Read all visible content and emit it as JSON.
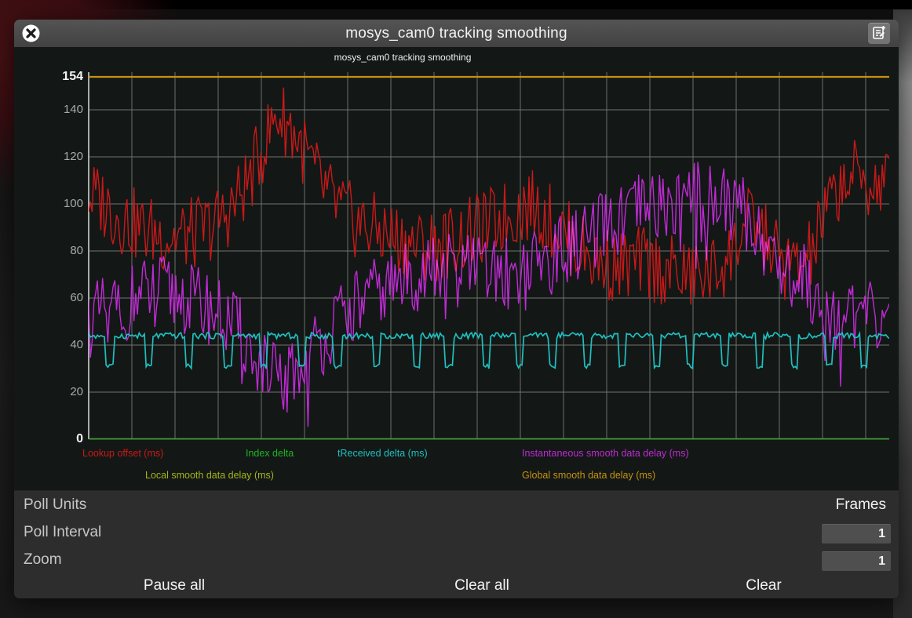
{
  "window": {
    "title": "mosys_cam0 tracking smoothing"
  },
  "chart_data": {
    "type": "line",
    "title": "mosys_cam0 tracking smoothing",
    "xlabel": "",
    "ylabel": "",
    "ylim": [
      0,
      154
    ],
    "grid": true,
    "legend_position": "bottom",
    "yticks": [
      {
        "label": "154",
        "value": 154,
        "emph": true
      },
      {
        "label": "140",
        "value": 140,
        "emph": false
      },
      {
        "label": "120",
        "value": 120,
        "emph": false
      },
      {
        "label": "100",
        "value": 100,
        "emph": false
      },
      {
        "label": "80",
        "value": 80,
        "emph": false
      },
      {
        "label": "60",
        "value": 60,
        "emph": false
      },
      {
        "label": "40",
        "value": 40,
        "emph": false
      },
      {
        "label": "20",
        "value": 20,
        "emph": false
      },
      {
        "label": "0",
        "value": 0,
        "emph": true
      }
    ],
    "draw_order": [
      4,
      5,
      3,
      0,
      2,
      1
    ],
    "series": [
      {
        "name": "Lookup offset (ms)",
        "color": "#c81919",
        "type": "noisy",
        "amplitude": 16,
        "seed": 3,
        "blend": "screen",
        "anchors": [
          [
            0,
            104
          ],
          [
            2,
            100
          ],
          [
            4,
            94
          ],
          [
            7,
            89
          ],
          [
            10,
            86
          ],
          [
            13,
            87
          ],
          [
            16,
            92
          ],
          [
            18,
            99
          ],
          [
            20,
            110
          ],
          [
            22,
            126
          ],
          [
            23.5,
            138
          ],
          [
            25,
            134
          ],
          [
            27,
            122
          ],
          [
            29,
            108
          ],
          [
            31,
            99
          ],
          [
            33,
            93
          ],
          [
            35,
            90
          ],
          [
            38,
            86
          ],
          [
            41,
            82
          ],
          [
            44,
            83
          ],
          [
            47,
            86
          ],
          [
            50,
            91
          ],
          [
            53,
            96
          ],
          [
            55,
            100
          ],
          [
            57,
            95
          ],
          [
            59,
            89
          ],
          [
            61,
            82
          ],
          [
            63,
            77
          ],
          [
            66,
            73
          ],
          [
            69,
            75
          ],
          [
            72,
            72
          ],
          [
            75,
            69
          ],
          [
            78,
            71
          ],
          [
            80,
            77
          ],
          [
            81.5,
            88
          ],
          [
            83,
            93
          ],
          [
            85,
            83
          ],
          [
            87,
            74
          ],
          [
            89,
            73
          ],
          [
            90.5,
            80
          ],
          [
            92,
            96
          ],
          [
            94,
            109
          ],
          [
            96,
            112
          ],
          [
            98,
            107
          ],
          [
            100,
            111
          ]
        ]
      },
      {
        "name": "Index delta",
        "color": "#1db325",
        "type": "flat",
        "value": 0
      },
      {
        "name": "tReceived delta (ms)",
        "color": "#1fbfbf",
        "type": "dips",
        "base": 44,
        "amplitude": 1.3,
        "seed": 9,
        "dip_value": 31,
        "dip_width": 0.45,
        "dips": [
          2.6,
          7.5,
          12.5,
          17.4,
          21.8,
          26.7,
          31.1,
          36,
          40.9,
          45,
          49.7,
          53.8,
          58,
          62.3,
          66.6,
          70.9,
          75.2,
          79.5,
          83.8,
          88.1,
          92.5,
          96.8
        ]
      },
      {
        "name": "Instantaneous smooth data delay (ms)",
        "color": "#bf2ad4",
        "type": "noisy",
        "amplitude": 16,
        "seed": 11,
        "downspike": 16,
        "anchors": [
          [
            0,
            50
          ],
          [
            3,
            55
          ],
          [
            6,
            60
          ],
          [
            9,
            63
          ],
          [
            12,
            60
          ],
          [
            15,
            56
          ],
          [
            18,
            48
          ],
          [
            20,
            40
          ],
          [
            22,
            30
          ],
          [
            23.5,
            24
          ],
          [
            25,
            26
          ],
          [
            27,
            33
          ],
          [
            29,
            42
          ],
          [
            31,
            50
          ],
          [
            33,
            56
          ],
          [
            35,
            60
          ],
          [
            37,
            64
          ],
          [
            39,
            67
          ],
          [
            42,
            71
          ],
          [
            45,
            73
          ],
          [
            48,
            72
          ],
          [
            51,
            70
          ],
          [
            54,
            72
          ],
          [
            57,
            76
          ],
          [
            60,
            81
          ],
          [
            63,
            87
          ],
          [
            66,
            92
          ],
          [
            69,
            97
          ],
          [
            71,
            99
          ],
          [
            73,
            100
          ],
          [
            75,
            102
          ],
          [
            77,
            104
          ],
          [
            79,
            102
          ],
          [
            81,
            99
          ],
          [
            83,
            92
          ],
          [
            85,
            80
          ],
          [
            87,
            72
          ],
          [
            89,
            70
          ],
          [
            91,
            62
          ],
          [
            93,
            54
          ],
          [
            95,
            49
          ],
          [
            96.5,
            54
          ],
          [
            98,
            51
          ],
          [
            100,
            56
          ]
        ]
      },
      {
        "name": "Local smooth data delay (ms)",
        "color": "#a8b31c",
        "type": "flat",
        "value": 0
      },
      {
        "name": "Global smooth data delay (ms)",
        "color": "#c79110",
        "type": "flat",
        "value": 154
      }
    ]
  },
  "controls": {
    "poll_units_label": "Poll Units",
    "poll_units_value": "Frames",
    "poll_interval_label": "Poll Interval",
    "poll_interval_value": "1",
    "zoom_label": "Zoom",
    "zoom_value": "1",
    "pause_all_label": "Pause all",
    "clear_all_label": "Clear all",
    "clear_label": "Clear"
  }
}
